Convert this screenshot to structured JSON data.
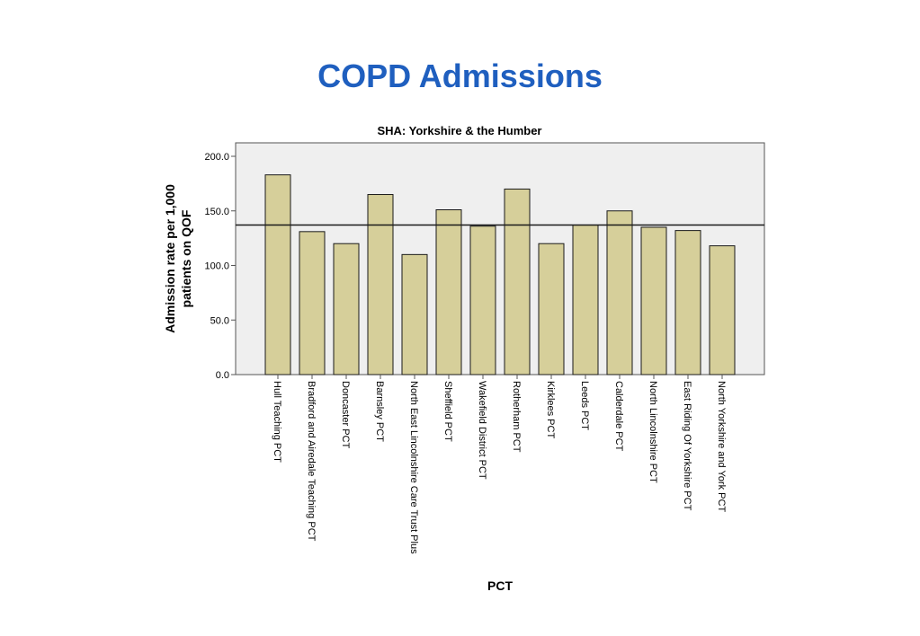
{
  "page": {
    "title": "COPD Admissions"
  },
  "colors": {
    "bar_fill": "#d6cf9a",
    "bar_stroke": "#1a1a1a",
    "plot_bg": "#efefef",
    "title": "#1f5fbf"
  },
  "chart_data": {
    "type": "bar",
    "title": "SHA: Yorkshire & the Humber",
    "xlabel": "PCT",
    "ylabel_lines": [
      "Admission rate per 1,000",
      "patients on QOF"
    ],
    "ylim": [
      0,
      200
    ],
    "yticks": [
      0,
      50,
      100,
      150,
      200
    ],
    "ytick_labels": [
      "0.0",
      "50.0",
      "100.0",
      "150.0",
      "200.0"
    ],
    "reference_line": 137,
    "grid": false,
    "categories": [
      "Hull Teaching PCT",
      "Bradford and Airedale Teaching PCT",
      "Doncaster PCT",
      "Barnsley PCT",
      "North East Lincolnshire Care Trust Plus",
      "Sheffield PCT",
      "Wakefield District PCT",
      "Rotherham PCT",
      "Kirklees PCT",
      "Leeds PCT",
      "Calderdale PCT",
      "North Lincolnshire PCT",
      "East Riding Of Yorkshire PCT",
      "North Yorkshire and York PCT"
    ],
    "values": [
      183,
      131,
      120,
      165,
      110,
      151,
      136,
      170,
      120,
      137,
      150,
      135,
      132,
      118
    ]
  }
}
